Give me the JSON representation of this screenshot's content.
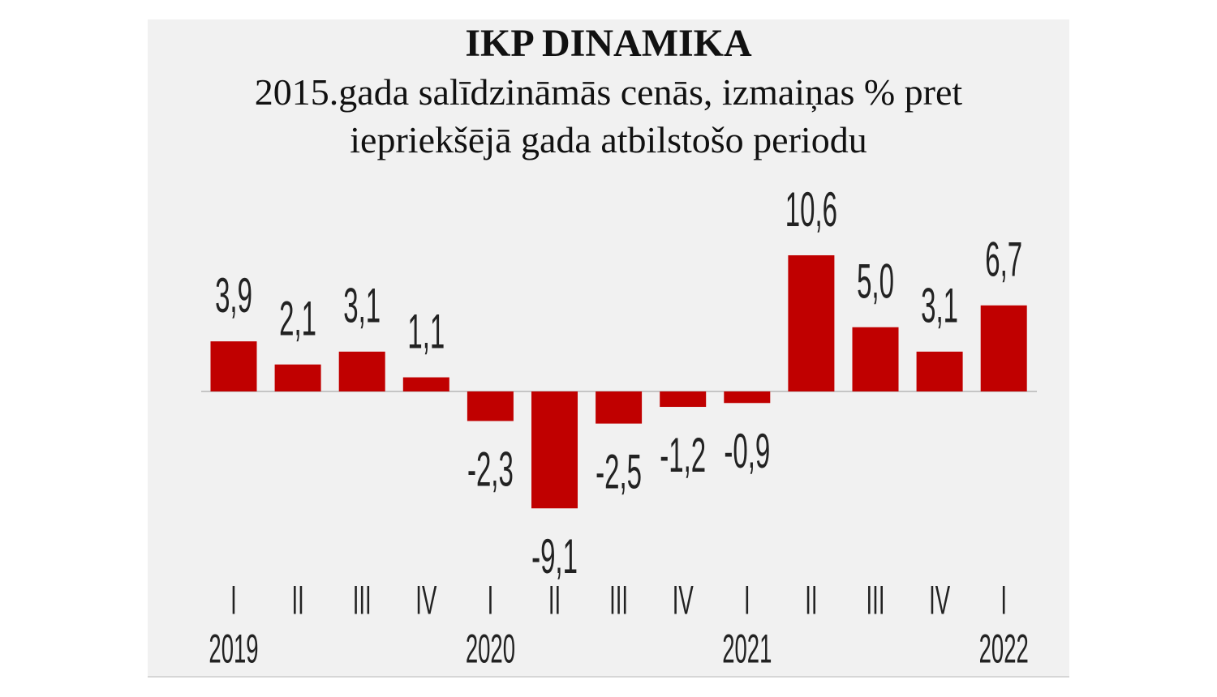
{
  "chart_data": {
    "type": "bar",
    "title": "IKP DINAMIKA",
    "subtitle_line1": "2015.gada salīdzināmās cenās, izmaiņas % pret",
    "subtitle_line2": "iepriekšējā gada atbilstošo periodu",
    "categories": [
      "I",
      "II",
      "III",
      "IV",
      "I",
      "II",
      "III",
      "IV",
      "I",
      "II",
      "III",
      "IV",
      "I"
    ],
    "years": [
      {
        "label": "2019",
        "index": 0
      },
      {
        "label": "2020",
        "index": 4
      },
      {
        "label": "2021",
        "index": 8
      },
      {
        "label": "2022",
        "index": 12
      }
    ],
    "values": [
      3.9,
      2.1,
      3.1,
      1.1,
      -2.3,
      -9.1,
      -2.5,
      -1.2,
      -0.9,
      10.6,
      5.0,
      3.1,
      6.7
    ],
    "value_labels": [
      "3,9",
      "2,1",
      "3,1",
      "1,1",
      "-2,3",
      "-9,1",
      "-2,5",
      "-1,2",
      "-0,9",
      "10,6",
      "5,0",
      "3,1",
      "6,7"
    ],
    "bar_color": "#c00000",
    "background": "#f1f1f1",
    "grid": false
  }
}
